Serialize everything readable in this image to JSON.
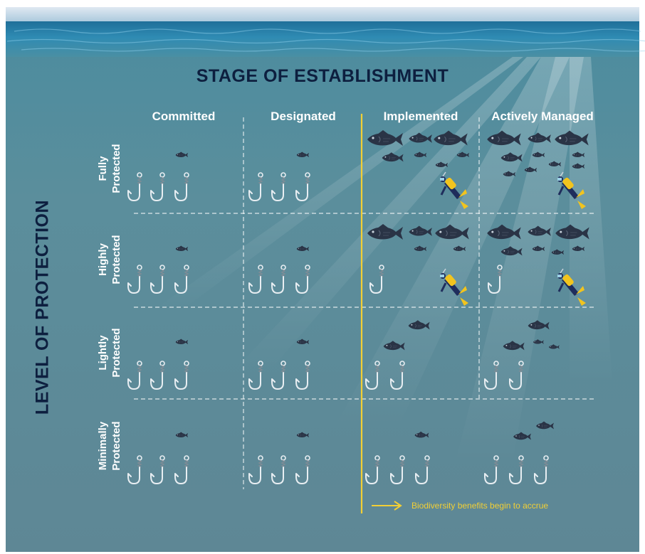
{
  "title": "STAGE OF ESTABLISHMENT",
  "y_axis_label": "LEVEL OF PROTECTION",
  "columns": [
    "Committed",
    "Designated",
    "Implemented",
    "Actively Managed"
  ],
  "rows": [
    {
      "line1": "Fully",
      "line2": "Protected"
    },
    {
      "line1": "Highly",
      "line2": "Protected"
    },
    {
      "line1": "Lightly",
      "line2": "Protected"
    },
    {
      "line1": "Minimally",
      "line2": "Protected"
    }
  ],
  "legend_text": "Biodiversity benefits begin to accrue",
  "colors": {
    "water": "#5b8a98",
    "title": "#0d1f3f",
    "accent_line": "#f2cf35",
    "fish": "#2a3446",
    "hook": "#e8eef2"
  }
}
